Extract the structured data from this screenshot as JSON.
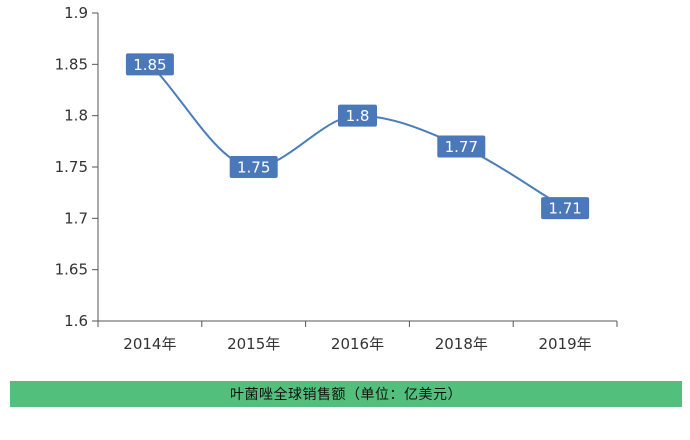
{
  "chart_data": {
    "type": "line",
    "smooth": true,
    "categories": [
      "2014年",
      "2015年",
      "2016年",
      "2018年",
      "2019年"
    ],
    "series": [
      {
        "values": [
          1.85,
          1.75,
          1.8,
          1.77,
          1.71
        ],
        "data_labels": [
          "1.85",
          "1.75",
          "1.8",
          "1.77",
          "1.71"
        ]
      }
    ],
    "ylim": [
      1.6,
      1.9
    ],
    "yticks": [
      1.6,
      1.65,
      1.7,
      1.75,
      1.8,
      1.85,
      1.9
    ],
    "ytick_labels": [
      "1.6",
      "1.65",
      "1.7",
      "1.75",
      "1.8",
      "1.85",
      "1.9"
    ],
    "grid": false,
    "title": "",
    "xlabel": "",
    "ylabel": "",
    "colors": {
      "line": "#4a7eb8",
      "label_bg": "#4a78b8",
      "axis": "#555555"
    }
  },
  "caption": {
    "text": "叶菌唑全球销售额（单位：亿美元）",
    "background": "#52c07c"
  }
}
